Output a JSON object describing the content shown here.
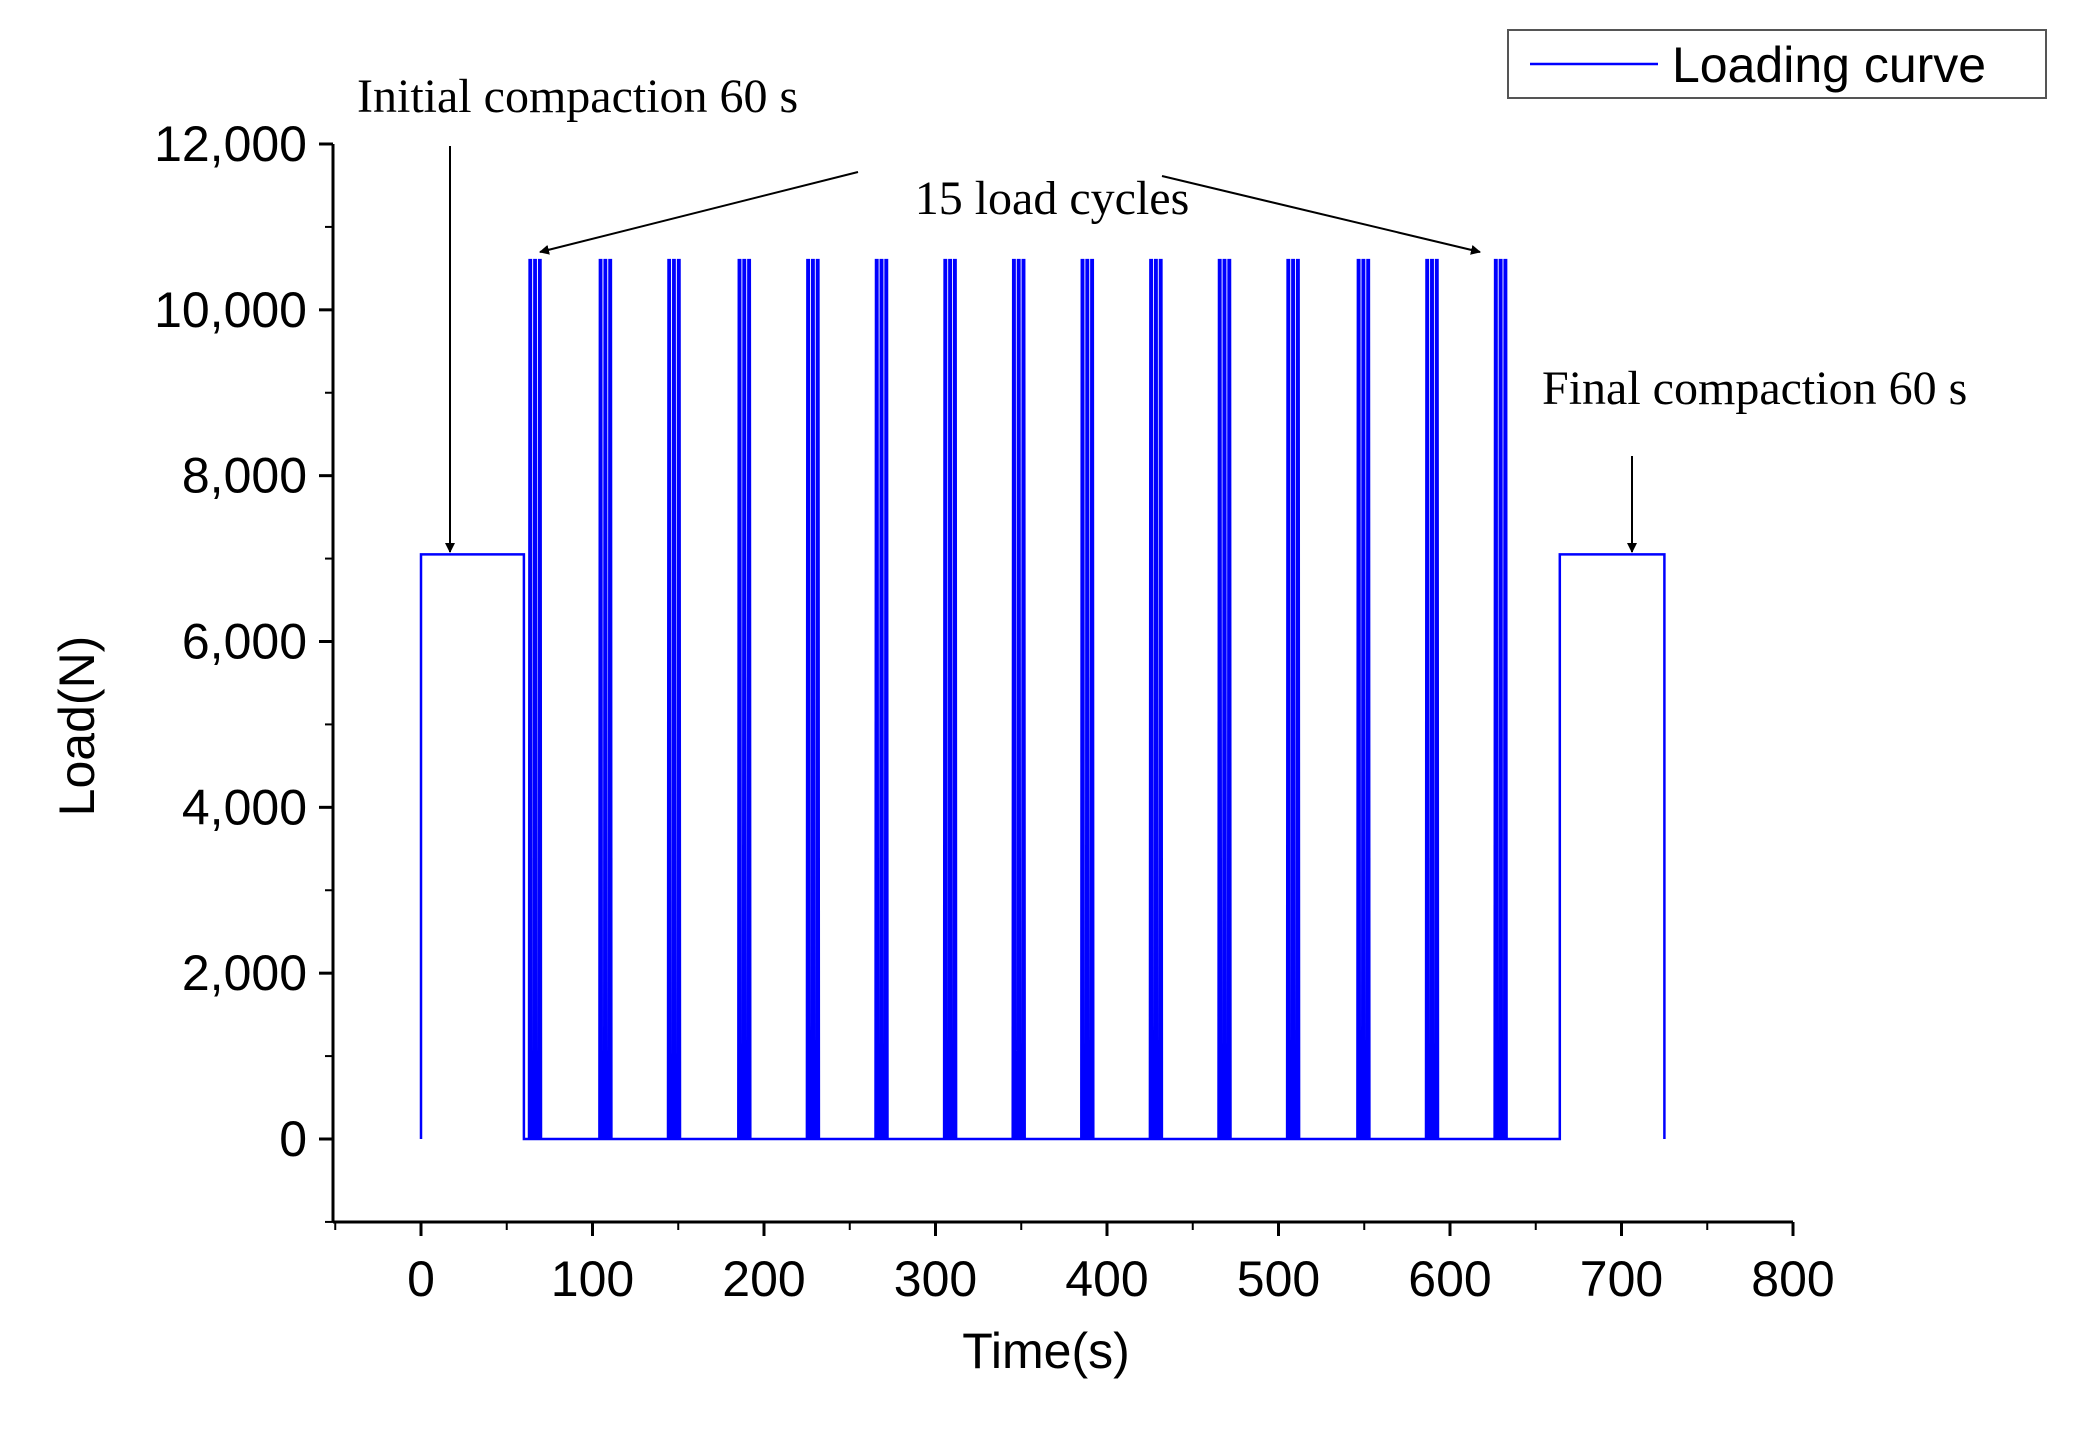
{
  "chart_data": {
    "type": "line",
    "title": "",
    "xlabel": "Time(s)",
    "ylabel": "Load(N)",
    "xlim": [
      -50,
      800
    ],
    "ylim": [
      -1000,
      12000
    ],
    "x_ticks": [
      0,
      100,
      200,
      300,
      400,
      500,
      600,
      700,
      800
    ],
    "x_tick_labels": [
      "0",
      "100",
      "200",
      "300",
      "400",
      "500",
      "600",
      "700",
      "800"
    ],
    "y_ticks": [
      0,
      2000,
      4000,
      6000,
      8000,
      10000,
      12000
    ],
    "y_tick_labels": [
      "0",
      "2,000",
      "4,000",
      "6,000",
      "8,000",
      "10,000",
      "12,000"
    ],
    "grid": false,
    "legend": {
      "position": "top-right",
      "entries": [
        "Loading curve"
      ]
    },
    "series": [
      {
        "name": "Loading curve",
        "color": "#0000ff",
        "compaction_load": 7050,
        "cycle_peak_load": 10600,
        "initial_compaction": {
          "start": 0,
          "end": 60
        },
        "cycle_starts": [
          63,
          104,
          144,
          185,
          225,
          265,
          305,
          345,
          385,
          425,
          465,
          505,
          546,
          586,
          626
        ],
        "final_compaction": {
          "start": 664,
          "end": 725
        }
      }
    ],
    "annotations": [
      {
        "id": "initial",
        "text": "Initial compaction 60 s"
      },
      {
        "id": "cycles",
        "text": "15 load cycles"
      },
      {
        "id": "final",
        "text": "Final compaction 60 s"
      }
    ]
  }
}
